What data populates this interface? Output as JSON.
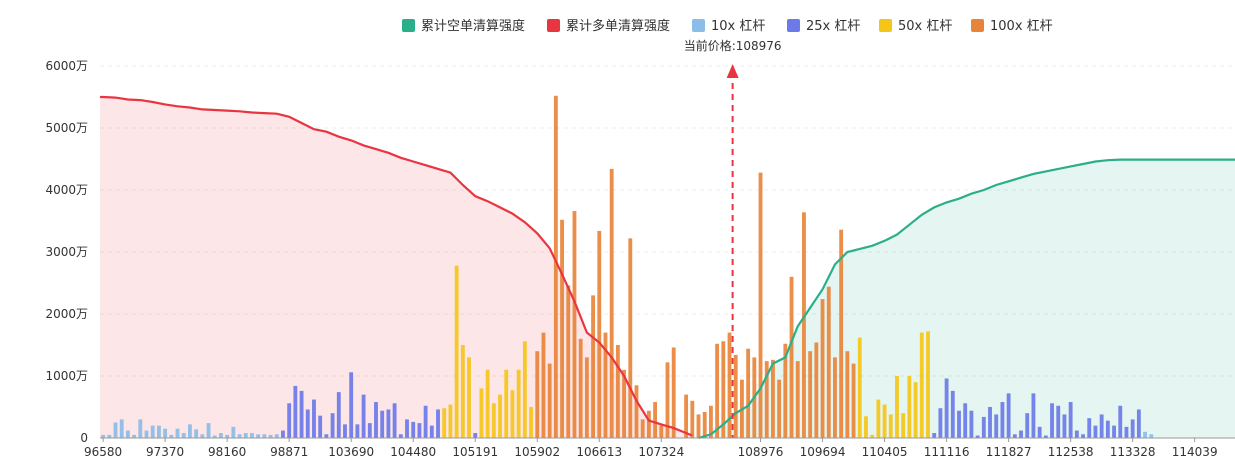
{
  "chart_data": {
    "type": "bar",
    "legend": [
      {
        "label": "累计空单清算强度",
        "color": "#2bae8a"
      },
      {
        "label": "累计多单清算强度",
        "color": "#e8353f"
      },
      {
        "label": "10x 杠杆",
        "color": "#8bbde6"
      },
      {
        "label": "25x 杠杆",
        "color": "#6b7ae8"
      },
      {
        "label": "50x 杠杆",
        "color": "#f5c518"
      },
      {
        "label": "100x 杠杆",
        "color": "#e8843a"
      }
    ],
    "legend_position": "top-center",
    "current_price_label": "当前价格:108976",
    "current_price_index": 106,
    "current_price_color": "#e8353f",
    "ylim": [
      0,
      6000
    ],
    "y_ticks": [
      "0",
      "1000万",
      "2000万",
      "3000万",
      "4000万",
      "5000万",
      "6000万"
    ],
    "x_ticks": [
      "96580",
      "97370",
      "98160",
      "98871",
      "103690",
      "104480",
      "105191",
      "105902",
      "106613",
      "107324",
      "108976",
      "109694",
      "110405",
      "111116",
      "111827",
      "112538",
      "113328",
      "114039"
    ],
    "x_tick_indices": [
      0,
      10,
      20,
      30,
      40,
      50,
      60,
      70,
      80,
      90,
      106,
      116,
      126,
      136,
      146,
      156,
      166,
      176
    ],
    "bar_count": 183,
    "grid": true,
    "bars": [
      {
        "i": 0,
        "v": 50,
        "c": "10x"
      },
      {
        "i": 1,
        "v": 50,
        "c": "10x"
      },
      {
        "i": 2,
        "v": 250,
        "c": "10x"
      },
      {
        "i": 3,
        "v": 300,
        "c": "10x"
      },
      {
        "i": 4,
        "v": 120,
        "c": "10x"
      },
      {
        "i": 5,
        "v": 50,
        "c": "10x"
      },
      {
        "i": 6,
        "v": 300,
        "c": "10x"
      },
      {
        "i": 7,
        "v": 120,
        "c": "10x"
      },
      {
        "i": 8,
        "v": 200,
        "c": "10x"
      },
      {
        "i": 9,
        "v": 200,
        "c": "10x"
      },
      {
        "i": 10,
        "v": 150,
        "c": "10x"
      },
      {
        "i": 11,
        "v": 50,
        "c": "10x"
      },
      {
        "i": 12,
        "v": 150,
        "c": "10x"
      },
      {
        "i": 13,
        "v": 80,
        "c": "10x"
      },
      {
        "i": 14,
        "v": 220,
        "c": "10x"
      },
      {
        "i": 15,
        "v": 140,
        "c": "10x"
      },
      {
        "i": 16,
        "v": 60,
        "c": "10x"
      },
      {
        "i": 17,
        "v": 240,
        "c": "10x"
      },
      {
        "i": 18,
        "v": 40,
        "c": "10x"
      },
      {
        "i": 19,
        "v": 80,
        "c": "10x"
      },
      {
        "i": 20,
        "v": 50,
        "c": "10x"
      },
      {
        "i": 21,
        "v": 180,
        "c": "10x"
      },
      {
        "i": 22,
        "v": 60,
        "c": "10x"
      },
      {
        "i": 23,
        "v": 80,
        "c": "10x"
      },
      {
        "i": 24,
        "v": 80,
        "c": "10x"
      },
      {
        "i": 25,
        "v": 60,
        "c": "10x"
      },
      {
        "i": 26,
        "v": 60,
        "c": "10x"
      },
      {
        "i": 27,
        "v": 50,
        "c": "10x"
      },
      {
        "i": 28,
        "v": 60,
        "c": "10x"
      },
      {
        "i": 29,
        "v": 120,
        "c": "25x"
      },
      {
        "i": 30,
        "v": 560,
        "c": "25x"
      },
      {
        "i": 31,
        "v": 840,
        "c": "25x"
      },
      {
        "i": 32,
        "v": 760,
        "c": "25x"
      },
      {
        "i": 33,
        "v": 460,
        "c": "25x"
      },
      {
        "i": 34,
        "v": 620,
        "c": "25x"
      },
      {
        "i": 35,
        "v": 360,
        "c": "25x"
      },
      {
        "i": 36,
        "v": 60,
        "c": "25x"
      },
      {
        "i": 37,
        "v": 400,
        "c": "25x"
      },
      {
        "i": 38,
        "v": 740,
        "c": "25x"
      },
      {
        "i": 39,
        "v": 220,
        "c": "25x"
      },
      {
        "i": 40,
        "v": 1060,
        "c": "25x"
      },
      {
        "i": 41,
        "v": 220,
        "c": "25x"
      },
      {
        "i": 42,
        "v": 700,
        "c": "25x"
      },
      {
        "i": 43,
        "v": 240,
        "c": "25x"
      },
      {
        "i": 44,
        "v": 580,
        "c": "25x"
      },
      {
        "i": 45,
        "v": 440,
        "c": "25x"
      },
      {
        "i": 46,
        "v": 460,
        "c": "25x"
      },
      {
        "i": 47,
        "v": 560,
        "c": "25x"
      },
      {
        "i": 48,
        "v": 60,
        "c": "25x"
      },
      {
        "i": 49,
        "v": 300,
        "c": "25x"
      },
      {
        "i": 50,
        "v": 260,
        "c": "25x"
      },
      {
        "i": 51,
        "v": 240,
        "c": "25x"
      },
      {
        "i": 52,
        "v": 520,
        "c": "25x"
      },
      {
        "i": 53,
        "v": 200,
        "c": "25x"
      },
      {
        "i": 54,
        "v": 460,
        "c": "25x"
      },
      {
        "i": 55,
        "v": 480,
        "c": "50x"
      },
      {
        "i": 56,
        "v": 540,
        "c": "50x"
      },
      {
        "i": 57,
        "v": 2780,
        "c": "50x"
      },
      {
        "i": 58,
        "v": 1500,
        "c": "50x"
      },
      {
        "i": 59,
        "v": 1300,
        "c": "50x"
      },
      {
        "i": 60,
        "v": 80,
        "c": "25x"
      },
      {
        "i": 61,
        "v": 800,
        "c": "50x"
      },
      {
        "i": 62,
        "v": 1100,
        "c": "50x"
      },
      {
        "i": 63,
        "v": 560,
        "c": "50x"
      },
      {
        "i": 64,
        "v": 700,
        "c": "50x"
      },
      {
        "i": 65,
        "v": 1100,
        "c": "50x"
      },
      {
        "i": 66,
        "v": 770,
        "c": "50x"
      },
      {
        "i": 67,
        "v": 1100,
        "c": "50x"
      },
      {
        "i": 68,
        "v": 1560,
        "c": "50x"
      },
      {
        "i": 69,
        "v": 500,
        "c": "50x"
      },
      {
        "i": 70,
        "v": 1400,
        "c": "100x"
      },
      {
        "i": 71,
        "v": 1700,
        "c": "100x"
      },
      {
        "i": 72,
        "v": 1200,
        "c": "100x"
      },
      {
        "i": 73,
        "v": 5520,
        "c": "100x"
      },
      {
        "i": 74,
        "v": 3520,
        "c": "100x"
      },
      {
        "i": 75,
        "v": 2460,
        "c": "100x"
      },
      {
        "i": 76,
        "v": 3660,
        "c": "100x"
      },
      {
        "i": 77,
        "v": 1600,
        "c": "100x"
      },
      {
        "i": 78,
        "v": 1300,
        "c": "100x"
      },
      {
        "i": 79,
        "v": 2300,
        "c": "100x"
      },
      {
        "i": 80,
        "v": 3340,
        "c": "100x"
      },
      {
        "i": 81,
        "v": 1700,
        "c": "100x"
      },
      {
        "i": 82,
        "v": 4340,
        "c": "100x"
      },
      {
        "i": 83,
        "v": 1500,
        "c": "100x"
      },
      {
        "i": 84,
        "v": 1100,
        "c": "100x"
      },
      {
        "i": 85,
        "v": 3220,
        "c": "100x"
      },
      {
        "i": 86,
        "v": 850,
        "c": "100x"
      },
      {
        "i": 87,
        "v": 300,
        "c": "100x"
      },
      {
        "i": 88,
        "v": 440,
        "c": "100x"
      },
      {
        "i": 89,
        "v": 580,
        "c": "100x"
      },
      {
        "i": 90,
        "v": 200,
        "c": "100x"
      },
      {
        "i": 91,
        "v": 1220,
        "c": "100x"
      },
      {
        "i": 92,
        "v": 1460,
        "c": "100x"
      },
      {
        "i": 94,
        "v": 700,
        "c": "100x"
      },
      {
        "i": 95,
        "v": 600,
        "c": "100x"
      },
      {
        "i": 96,
        "v": 380,
        "c": "100x"
      },
      {
        "i": 97,
        "v": 420,
        "c": "100x"
      },
      {
        "i": 98,
        "v": 520,
        "c": "100x"
      },
      {
        "i": 99,
        "v": 1520,
        "c": "100x"
      },
      {
        "i": 100,
        "v": 1560,
        "c": "100x"
      },
      {
        "i": 101,
        "v": 1700,
        "c": "100x"
      },
      {
        "i": 102,
        "v": 1340,
        "c": "100x"
      },
      {
        "i": 103,
        "v": 940,
        "c": "100x"
      },
      {
        "i": 104,
        "v": 1440,
        "c": "100x"
      },
      {
        "i": 105,
        "v": 1300,
        "c": "100x"
      },
      {
        "i": 106,
        "v": 4280,
        "c": "100x"
      },
      {
        "i": 107,
        "v": 1240,
        "c": "100x"
      },
      {
        "i": 108,
        "v": 1260,
        "c": "100x"
      },
      {
        "i": 109,
        "v": 940,
        "c": "100x"
      },
      {
        "i": 110,
        "v": 1520,
        "c": "100x"
      },
      {
        "i": 111,
        "v": 2600,
        "c": "100x"
      },
      {
        "i": 112,
        "v": 1240,
        "c": "100x"
      },
      {
        "i": 113,
        "v": 3640,
        "c": "100x"
      },
      {
        "i": 114,
        "v": 1400,
        "c": "100x"
      },
      {
        "i": 115,
        "v": 1540,
        "c": "100x"
      },
      {
        "i": 116,
        "v": 2240,
        "c": "100x"
      },
      {
        "i": 117,
        "v": 2440,
        "c": "100x"
      },
      {
        "i": 118,
        "v": 1300,
        "c": "100x"
      },
      {
        "i": 119,
        "v": 3360,
        "c": "100x"
      },
      {
        "i": 120,
        "v": 1400,
        "c": "100x"
      },
      {
        "i": 121,
        "v": 1200,
        "c": "100x"
      },
      {
        "i": 122,
        "v": 1620,
        "c": "50x"
      },
      {
        "i": 123,
        "v": 350,
        "c": "50x"
      },
      {
        "i": 124,
        "v": 50,
        "c": "50x"
      },
      {
        "i": 125,
        "v": 620,
        "c": "50x"
      },
      {
        "i": 126,
        "v": 540,
        "c": "50x"
      },
      {
        "i": 127,
        "v": 380,
        "c": "50x"
      },
      {
        "i": 128,
        "v": 1000,
        "c": "50x"
      },
      {
        "i": 129,
        "v": 400,
        "c": "50x"
      },
      {
        "i": 130,
        "v": 1000,
        "c": "50x"
      },
      {
        "i": 131,
        "v": 900,
        "c": "50x"
      },
      {
        "i": 132,
        "v": 1700,
        "c": "50x"
      },
      {
        "i": 133,
        "v": 1720,
        "c": "50x"
      },
      {
        "i": 134,
        "v": 80,
        "c": "25x"
      },
      {
        "i": 135,
        "v": 480,
        "c": "25x"
      },
      {
        "i": 136,
        "v": 960,
        "c": "25x"
      },
      {
        "i": 137,
        "v": 760,
        "c": "25x"
      },
      {
        "i": 138,
        "v": 440,
        "c": "25x"
      },
      {
        "i": 139,
        "v": 560,
        "c": "25x"
      },
      {
        "i": 140,
        "v": 440,
        "c": "25x"
      },
      {
        "i": 141,
        "v": 40,
        "c": "25x"
      },
      {
        "i": 142,
        "v": 340,
        "c": "25x"
      },
      {
        "i": 143,
        "v": 500,
        "c": "25x"
      },
      {
        "i": 144,
        "v": 380,
        "c": "25x"
      },
      {
        "i": 145,
        "v": 580,
        "c": "25x"
      },
      {
        "i": 146,
        "v": 720,
        "c": "25x"
      },
      {
        "i": 147,
        "v": 60,
        "c": "25x"
      },
      {
        "i": 148,
        "v": 120,
        "c": "25x"
      },
      {
        "i": 149,
        "v": 400,
        "c": "25x"
      },
      {
        "i": 150,
        "v": 720,
        "c": "25x"
      },
      {
        "i": 151,
        "v": 180,
        "c": "25x"
      },
      {
        "i": 152,
        "v": 40,
        "c": "25x"
      },
      {
        "i": 153,
        "v": 560,
        "c": "25x"
      },
      {
        "i": 154,
        "v": 520,
        "c": "25x"
      },
      {
        "i": 155,
        "v": 380,
        "c": "25x"
      },
      {
        "i": 156,
        "v": 580,
        "c": "25x"
      },
      {
        "i": 157,
        "v": 120,
        "c": "25x"
      },
      {
        "i": 158,
        "v": 60,
        "c": "25x"
      },
      {
        "i": 159,
        "v": 320,
        "c": "25x"
      },
      {
        "i": 160,
        "v": 200,
        "c": "25x"
      },
      {
        "i": 161,
        "v": 380,
        "c": "25x"
      },
      {
        "i": 162,
        "v": 280,
        "c": "25x"
      },
      {
        "i": 163,
        "v": 200,
        "c": "25x"
      },
      {
        "i": 164,
        "v": 520,
        "c": "25x"
      },
      {
        "i": 165,
        "v": 180,
        "c": "25x"
      },
      {
        "i": 166,
        "v": 300,
        "c": "25x"
      },
      {
        "i": 167,
        "v": 460,
        "c": "25x"
      },
      {
        "i": 168,
        "v": 100,
        "c": "10x"
      },
      {
        "i": 169,
        "v": 60,
        "c": "10x"
      }
    ],
    "series": [
      {
        "name": "累计多单清算强度",
        "color": "#e8353f",
        "points": [
          [
            0,
            5500
          ],
          [
            2,
            5490
          ],
          [
            4,
            5460
          ],
          [
            6,
            5450
          ],
          [
            8,
            5420
          ],
          [
            10,
            5380
          ],
          [
            12,
            5350
          ],
          [
            14,
            5330
          ],
          [
            16,
            5300
          ],
          [
            18,
            5290
          ],
          [
            20,
            5280
          ],
          [
            22,
            5270
          ],
          [
            24,
            5250
          ],
          [
            26,
            5240
          ],
          [
            28,
            5230
          ],
          [
            30,
            5180
          ],
          [
            32,
            5080
          ],
          [
            34,
            4980
          ],
          [
            36,
            4940
          ],
          [
            38,
            4860
          ],
          [
            40,
            4800
          ],
          [
            42,
            4720
          ],
          [
            44,
            4660
          ],
          [
            46,
            4600
          ],
          [
            48,
            4520
          ],
          [
            50,
            4460
          ],
          [
            52,
            4400
          ],
          [
            54,
            4340
          ],
          [
            56,
            4280
          ],
          [
            58,
            4080
          ],
          [
            60,
            3900
          ],
          [
            62,
            3820
          ],
          [
            64,
            3720
          ],
          [
            66,
            3620
          ],
          [
            68,
            3480
          ],
          [
            70,
            3300
          ],
          [
            72,
            3060
          ],
          [
            74,
            2640
          ],
          [
            76,
            2200
          ],
          [
            78,
            1700
          ],
          [
            80,
            1540
          ],
          [
            82,
            1300
          ],
          [
            84,
            1000
          ],
          [
            86,
            600
          ],
          [
            88,
            280
          ],
          [
            90,
            220
          ],
          [
            92,
            160
          ],
          [
            94,
            80
          ],
          [
            95,
            40
          ]
        ]
      },
      {
        "name": "累计空单清算强度",
        "color": "#2bae8a",
        "points": [
          [
            96,
            0
          ],
          [
            98,
            60
          ],
          [
            100,
            220
          ],
          [
            102,
            400
          ],
          [
            104,
            520
          ],
          [
            106,
            800
          ],
          [
            108,
            1200
          ],
          [
            110,
            1300
          ],
          [
            112,
            1800
          ],
          [
            114,
            2100
          ],
          [
            116,
            2400
          ],
          [
            118,
            2800
          ],
          [
            120,
            3000
          ],
          [
            122,
            3050
          ],
          [
            124,
            3100
          ],
          [
            126,
            3180
          ],
          [
            128,
            3280
          ],
          [
            130,
            3440
          ],
          [
            132,
            3600
          ],
          [
            134,
            3720
          ],
          [
            136,
            3800
          ],
          [
            138,
            3860
          ],
          [
            140,
            3940
          ],
          [
            142,
            4000
          ],
          [
            144,
            4080
          ],
          [
            146,
            4140
          ],
          [
            148,
            4200
          ],
          [
            150,
            4260
          ],
          [
            152,
            4300
          ],
          [
            154,
            4340
          ],
          [
            156,
            4380
          ],
          [
            158,
            4420
          ],
          [
            160,
            4460
          ],
          [
            162,
            4480
          ],
          [
            164,
            4490
          ],
          [
            166,
            4490
          ],
          [
            168,
            4490
          ],
          [
            170,
            4490
          ]
        ]
      }
    ]
  }
}
